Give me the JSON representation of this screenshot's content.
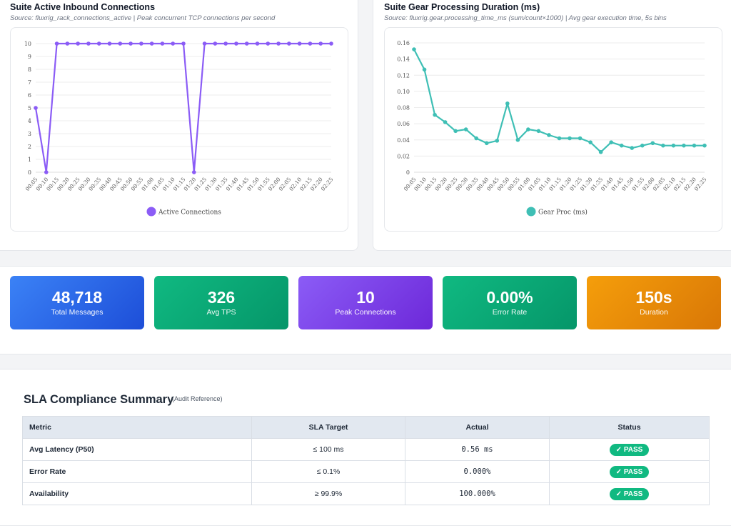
{
  "charts": {
    "connections": {
      "title": "Suite Active Inbound Connections",
      "subtitle": "Source: fluxrig_rack_connections_active | Peak concurrent TCP connections per second"
    },
    "gear": {
      "title": "Suite Gear Processing Duration (ms)",
      "subtitle": "Source: fluxrig.gear.processing_time_ms (sum/count×1000) | Avg gear execution time, 5s bins"
    }
  },
  "chart_data": [
    {
      "type": "line",
      "x": [
        "00:05",
        "00:10",
        "00:15",
        "00:20",
        "00:25",
        "00:30",
        "00:35",
        "00:40",
        "00:45",
        "00:50",
        "00:55",
        "01:00",
        "01:05",
        "01:10",
        "01:15",
        "01:20",
        "01:25",
        "01:30",
        "01:35",
        "01:40",
        "01:45",
        "01:50",
        "01:55",
        "02:00",
        "02:05",
        "02:10",
        "02:15",
        "02:20",
        "02:25"
      ],
      "series": [
        {
          "name": "Active Connections",
          "values": [
            5,
            0,
            10,
            10,
            10,
            10,
            10,
            10,
            10,
            10,
            10,
            10,
            10,
            10,
            10,
            0,
            10,
            10,
            10,
            10,
            10,
            10,
            10,
            10,
            10,
            10,
            10,
            10,
            10
          ]
        }
      ],
      "y_ticks": [
        "0",
        "1",
        "2",
        "3",
        "4",
        "5",
        "6",
        "7",
        "8",
        "9",
        "10"
      ],
      "ylim": [
        0,
        10
      ],
      "x_tick_labels": [
        "00:05",
        "00:10",
        "00:15",
        "00:20",
        "00:25",
        "00:30",
        "00:35",
        "00:40",
        "00:45",
        "00:50",
        "00:55",
        "01:00",
        "01:05",
        "01:10",
        "01:15",
        "01:20",
        "01:25",
        "01:30",
        "01:35",
        "01:40",
        "01:45",
        "01:50",
        "01:55",
        "02:00",
        "02:05",
        "02:10",
        "02:15",
        "02:20",
        "02:25"
      ],
      "color": "#8b5cf6",
      "legend": "bottom",
      "grid": true
    },
    {
      "type": "line",
      "x": [
        "00:05",
        "00:10",
        "00:15",
        "00:20",
        "00:25",
        "00:30",
        "00:35",
        "00:40",
        "00:45",
        "00:50",
        "00:55",
        "01:00",
        "01:05",
        "01:10",
        "01:15",
        "01:20",
        "01:25",
        "01:30",
        "01:35",
        "01:40",
        "01:45",
        "01:50",
        "01:55",
        "02:00",
        "02:05",
        "02:10",
        "02:15",
        "02:20",
        "02:25"
      ],
      "series": [
        {
          "name": "Gear Proc (ms)",
          "values": [
            0.152,
            0.127,
            0.071,
            0.062,
            0.051,
            0.053,
            0.042,
            0.036,
            0.039,
            0.085,
            0.04,
            0.053,
            0.051,
            0.046,
            0.042,
            0.042,
            0.042,
            0.037,
            0.025,
            0.037,
            0.033,
            0.03,
            0.033,
            0.036,
            0.033,
            0.033,
            0.033,
            0.033,
            0.033
          ]
        }
      ],
      "y_ticks": [
        "0",
        "0.02",
        "0.04",
        "0.06",
        "0.08",
        "0.10",
        "0.12",
        "0.14",
        "0.16"
      ],
      "ylim": [
        0,
        0.16
      ],
      "x_tick_labels": [
        "00:05",
        "00:10",
        "00:15",
        "00:20",
        "00:25",
        "00:30",
        "00:35",
        "00:40",
        "00:45",
        "00:50",
        "00:55",
        "01:00",
        "01:05",
        "01:10",
        "01:15",
        "01:20",
        "01:25",
        "01:30",
        "01:35",
        "01:40",
        "01:45",
        "01:50",
        "01:55",
        "02:00",
        "02:05",
        "02:10",
        "02:15",
        "02:20",
        "02:25"
      ],
      "color": "#3fbfb5",
      "legend": "bottom",
      "grid": true
    }
  ],
  "metrics": [
    {
      "value": "48,718",
      "label": "Total Messages"
    },
    {
      "value": "326",
      "label": "Avg TPS"
    },
    {
      "value": "10",
      "label": "Peak Connections"
    },
    {
      "value": "0.00%",
      "label": "Error Rate"
    },
    {
      "value": "150s",
      "label": "Duration"
    }
  ],
  "metric_colors": [
    "#2563eb",
    "#10b981",
    "#7c3aed",
    "#10b981",
    "#f59e0b"
  ],
  "sla": {
    "title": "SLA Compliance Summary",
    "reference": "(Audit Reference)",
    "headers": {
      "metric": "Metric",
      "target": "SLA Target",
      "actual": "Actual",
      "status": "Status"
    },
    "rows": [
      {
        "metric": "Avg Latency (P50)",
        "target": "≤ 100 ms",
        "actual": "0.56 ms",
        "status": "✓ PASS"
      },
      {
        "metric": "Error Rate",
        "target": "≤ 0.1%",
        "actual": "0.000%",
        "status": "✓ PASS"
      },
      {
        "metric": "Availability",
        "target": "≥ 99.9%",
        "actual": "100.000%",
        "status": "✓ PASS"
      }
    ]
  }
}
